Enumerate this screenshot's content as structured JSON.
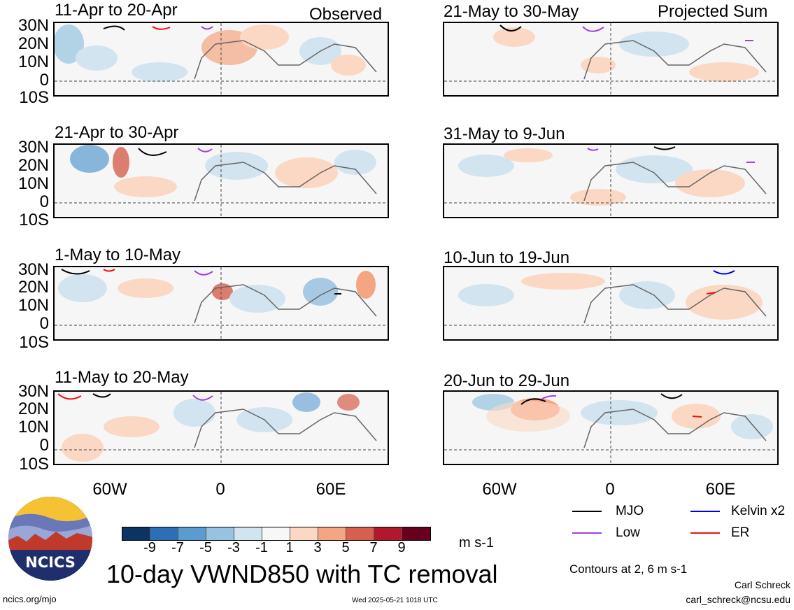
{
  "header": {
    "observed": "Observed",
    "projected": "Projected Sum"
  },
  "latitudes": [
    "30N",
    "20N",
    "10N",
    "0",
    "10S"
  ],
  "longitudes": [
    "60W",
    "0",
    "60E"
  ],
  "panels_observed": [
    "11-Apr to 20-Apr",
    "21-Apr to 30-Apr",
    "1-May to 10-May",
    "11-May to 20-May"
  ],
  "panels_projected": [
    "21-May to 30-May",
    "31-May to 9-Jun",
    "10-Jun to 19-Jun",
    "20-Jun to 29-Jun"
  ],
  "colorbar": {
    "colors": [
      "#0b3462",
      "#2d6fb4",
      "#5a9bd0",
      "#95c3e0",
      "#d2e4ef",
      "#f7f7f7",
      "#fbd8c4",
      "#f4a582",
      "#d6604d",
      "#b2182b",
      "#67001f"
    ],
    "ticks": [
      "-9",
      "-7",
      "-5",
      "-3",
      "-1",
      "1",
      "3",
      "5",
      "7",
      "9"
    ],
    "units": "m s-1"
  },
  "legend": [
    {
      "label": "MJO",
      "color": "#000000"
    },
    {
      "label": "Kelvin x2",
      "color": "#0000ee"
    },
    {
      "label": "Low",
      "color": "#a040e0"
    },
    {
      "label": "ER",
      "color": "#ee1111"
    }
  ],
  "contours_note": "Contours at 2, 6 m s-1",
  "title": "10-day VWND850 with TC removal",
  "logo_text": "NCICS",
  "footer": {
    "url": "ncics.org/mjo",
    "timestamp": "Wed 2025-05-21 1018 UTC",
    "author": "Carl Schreck",
    "email": "carl_schreck@ncsu.edu"
  }
}
